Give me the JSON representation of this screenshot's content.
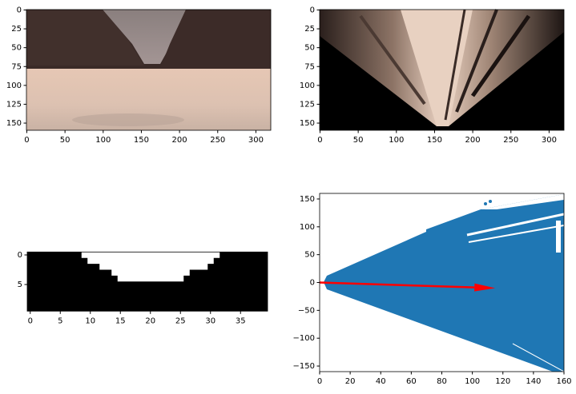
{
  "chart_data": [
    {
      "type": "image",
      "xlim": [
        -0.5,
        319.5
      ],
      "ylim": [
        159.5,
        -0.5
      ],
      "xticks": [
        0,
        50,
        100,
        150,
        200,
        250,
        300
      ],
      "yticks": [
        0,
        25,
        50,
        75,
        100,
        125,
        150
      ]
    },
    {
      "type": "image",
      "xlim": [
        -0.5,
        319.5
      ],
      "ylim": [
        159.5,
        -0.5
      ],
      "xticks": [
        0,
        50,
        100,
        150,
        200,
        250,
        300
      ],
      "yticks": [
        0,
        25,
        50,
        75,
        100,
        125,
        150
      ]
    },
    {
      "type": "image",
      "xlim": [
        -0.5,
        39.5
      ],
      "ylim": [
        9.5,
        -0.5
      ],
      "xticks": [
        0,
        5,
        10,
        15,
        20,
        25,
        30,
        35
      ],
      "yticks": [
        0,
        5
      ]
    },
    {
      "type": "scatter",
      "color": "#1f77b4",
      "xlim": [
        0,
        160
      ],
      "ylim": [
        -160,
        160
      ],
      "xticks": [
        0,
        20,
        40,
        60,
        80,
        100,
        120,
        140,
        160
      ],
      "yticks": [
        {
          "value": -150,
          "label": "−150"
        },
        {
          "value": -100,
          "label": "−100"
        },
        {
          "value": -50,
          "label": "−50"
        },
        0,
        50,
        100,
        150
      ],
      "arrow": {
        "x": [
          0,
          115
        ],
        "y": [
          0,
          -10
        ],
        "color": "#ff0000"
      }
    }
  ]
}
